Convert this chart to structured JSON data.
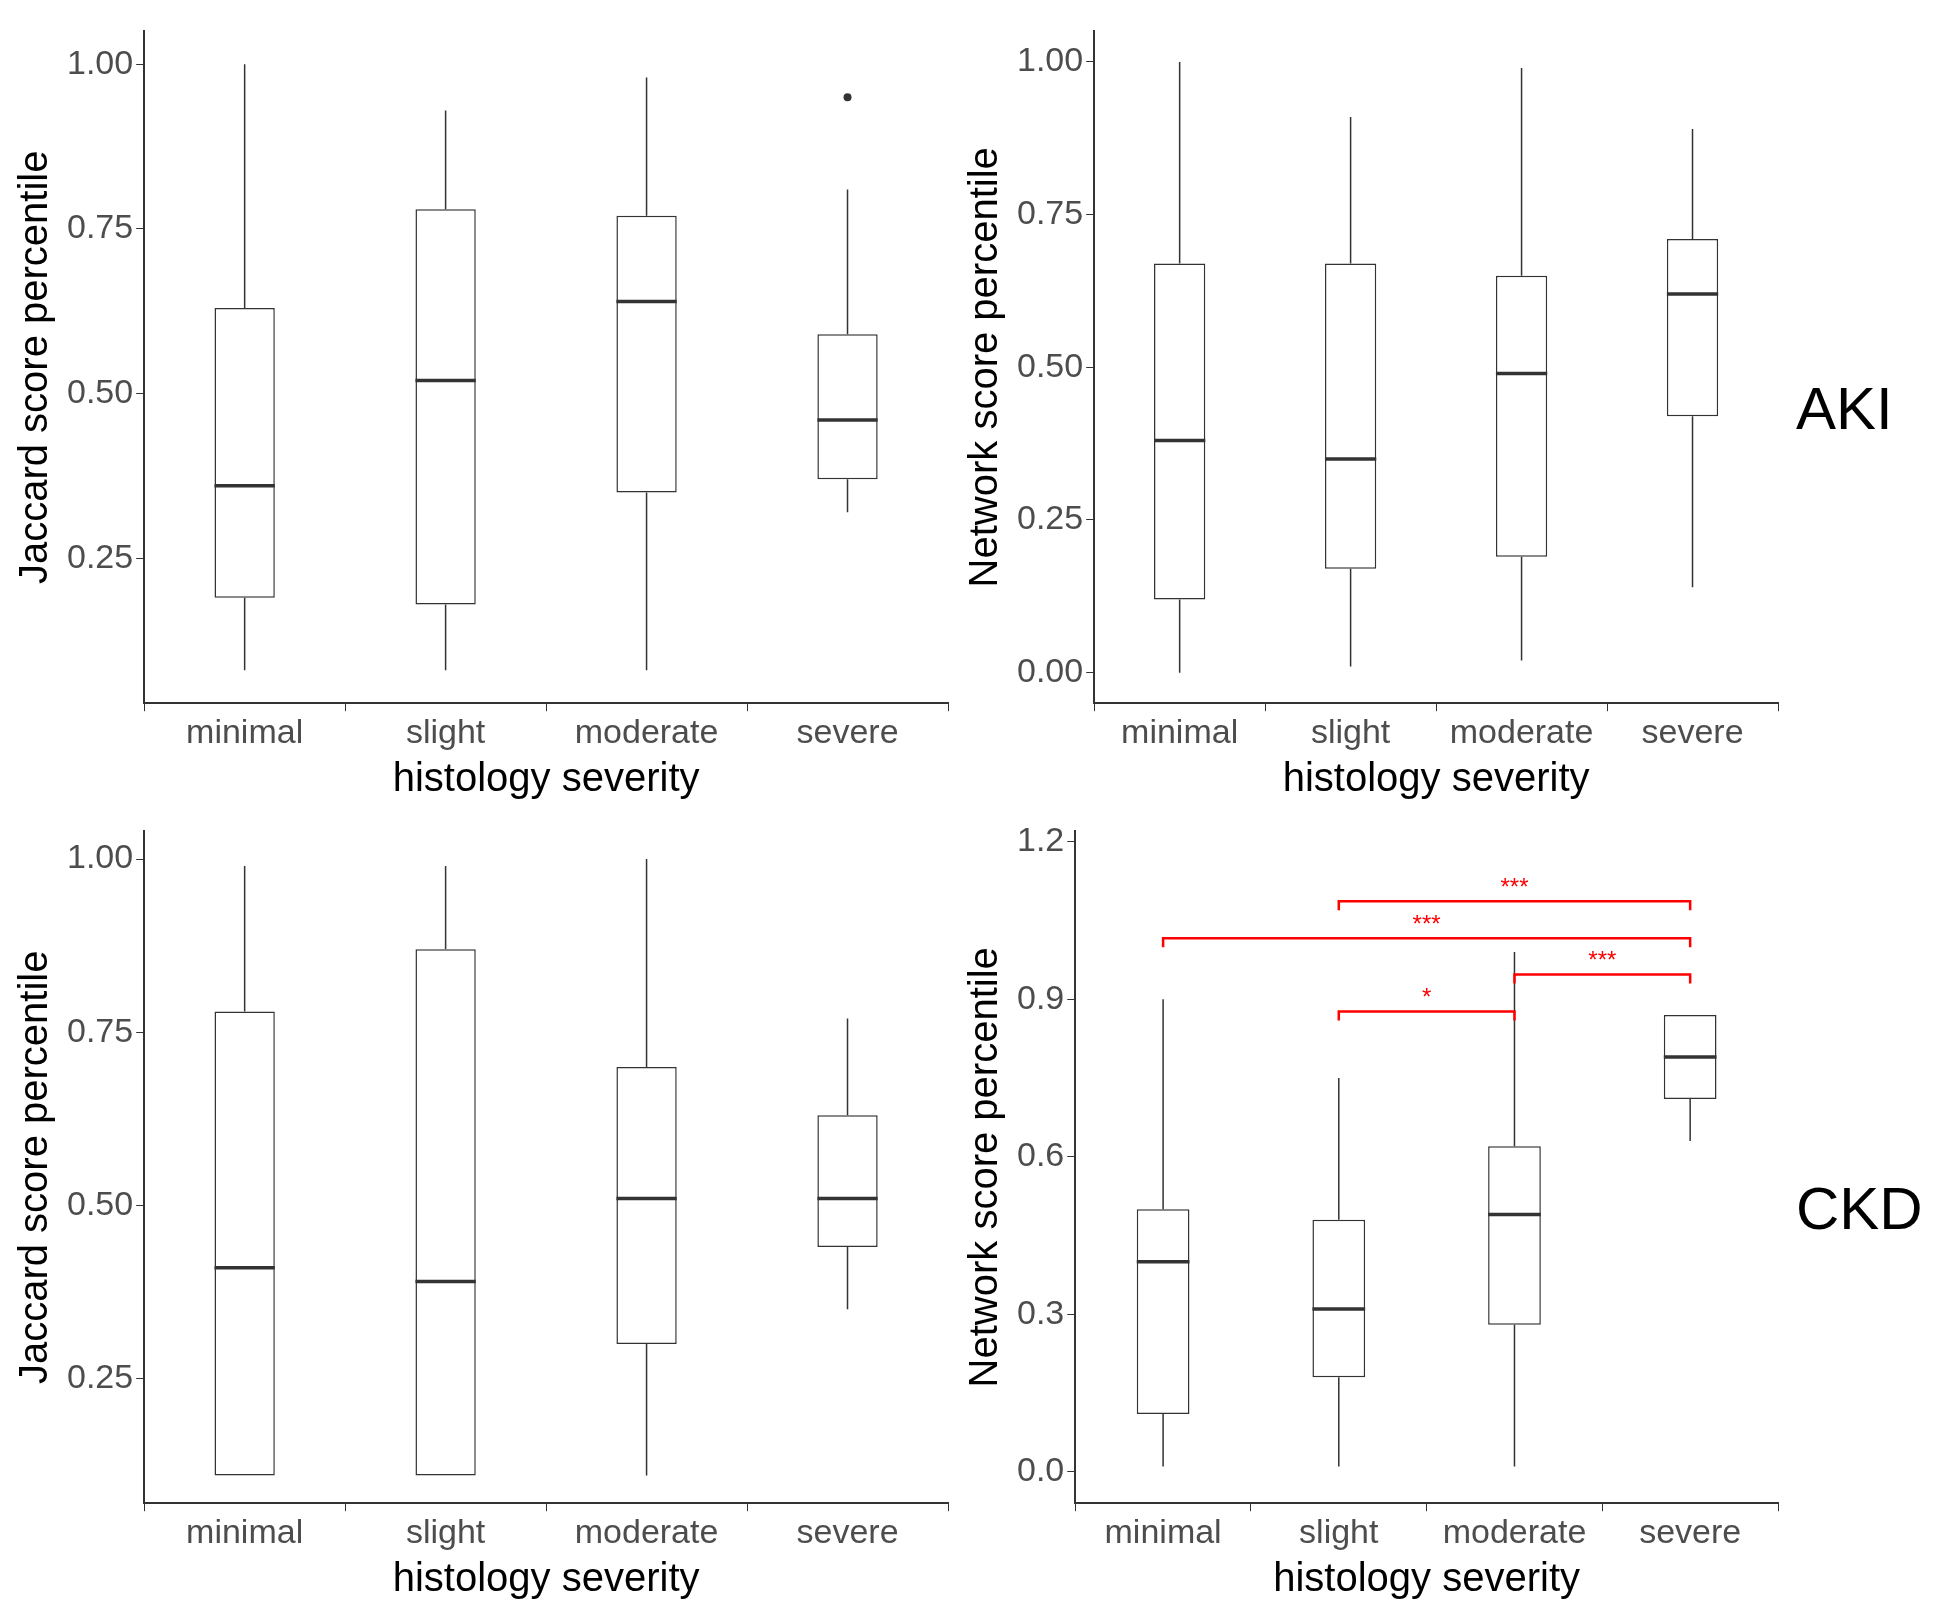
{
  "chart_data": [
    {
      "type": "box",
      "xlabel": "histology severity",
      "ylabel": "Jaccard score percentile",
      "categories": [
        "minimal",
        "slight",
        "moderate",
        "severe"
      ],
      "ylim": [
        0.03,
        1.05
      ],
      "yticks": [
        0.25,
        {
          "value": 0.5,
          "label": "0.50"
        },
        0.75,
        {
          "value": 1,
          "label": "1.00"
        }
      ],
      "boxes": [
        {
          "low": 0.08,
          "q1": 0.19,
          "median": 0.36,
          "q3": 0.63,
          "high": 1.0
        },
        {
          "low": 0.08,
          "q1": 0.18,
          "median": 0.52,
          "q3": 0.78,
          "high": 0.93
        },
        {
          "low": 0.08,
          "q1": 0.35,
          "median": 0.64,
          "q3": 0.77,
          "high": 0.98
        },
        {
          "low": 0.32,
          "q1": 0.37,
          "median": 0.46,
          "q3": 0.59,
          "high": 0.81,
          "outliers": [
            0.95
          ]
        }
      ]
    },
    {
      "type": "box",
      "xlabel": "histology severity",
      "ylabel": "Network score percentile",
      "categories": [
        "minimal",
        "slight",
        "moderate",
        "severe"
      ],
      "ylim": [
        -0.05,
        1.05
      ],
      "yticks": [
        {
          "value": 0,
          "label": "0.00"
        },
        0.25,
        {
          "value": 0.5,
          "label": "0.50"
        },
        0.75,
        {
          "value": 1,
          "label": "1.00"
        }
      ],
      "annotations": [
        "AKI"
      ],
      "boxes": [
        {
          "low": 0.0,
          "q1": 0.12,
          "median": 0.38,
          "q3": 0.67,
          "high": 1.0
        },
        {
          "low": 0.01,
          "q1": 0.17,
          "median": 0.35,
          "q3": 0.67,
          "high": 0.91
        },
        {
          "low": 0.02,
          "q1": 0.19,
          "median": 0.49,
          "q3": 0.65,
          "high": 0.99
        },
        {
          "low": 0.14,
          "q1": 0.42,
          "median": 0.62,
          "q3": 0.71,
          "high": 0.89
        }
      ]
    },
    {
      "type": "box",
      "xlabel": "histology severity",
      "ylabel": "Jaccard score percentile",
      "categories": [
        "minimal",
        "slight",
        "moderate",
        "severe"
      ],
      "ylim": [
        0.07,
        1.04
      ],
      "yticks": [
        0.25,
        {
          "value": 0.5,
          "label": "0.50"
        },
        0.75,
        {
          "value": 1,
          "label": "1.00"
        }
      ],
      "boxes": [
        {
          "low": 0.11,
          "q1": 0.11,
          "median": 0.41,
          "q3": 0.78,
          "high": 0.99
        },
        {
          "low": 0.11,
          "q1": 0.11,
          "median": 0.39,
          "q3": 0.87,
          "high": 0.99
        },
        {
          "low": 0.11,
          "q1": 0.3,
          "median": 0.51,
          "q3": 0.7,
          "high": 1.0
        },
        {
          "low": 0.35,
          "q1": 0.44,
          "median": 0.51,
          "q3": 0.63,
          "high": 0.77
        }
      ]
    },
    {
      "type": "box",
      "xlabel": "histology severity",
      "ylabel": "Network score percentile",
      "categories": [
        "minimal",
        "slight",
        "moderate",
        "severe"
      ],
      "ylim": [
        -0.06,
        1.22
      ],
      "yticks": [
        {
          "value": 0,
          "label": "0.0"
        },
        0.3,
        0.6,
        0.9,
        {
          "value": 1.2,
          "label": "1.2"
        }
      ],
      "annotations": [
        "***",
        "***",
        "***",
        "*",
        "CKD"
      ],
      "boxes": [
        {
          "low": 0.01,
          "q1": 0.11,
          "median": 0.4,
          "q3": 0.5,
          "high": 0.9
        },
        {
          "low": 0.01,
          "q1": 0.18,
          "median": 0.31,
          "q3": 0.48,
          "high": 0.75
        },
        {
          "low": 0.01,
          "q1": 0.28,
          "median": 0.49,
          "q3": 0.62,
          "high": 0.99
        },
        {
          "low": 0.63,
          "q1": 0.71,
          "median": 0.79,
          "q3": 0.87,
          "high": 0.87
        }
      ]
    }
  ]
}
